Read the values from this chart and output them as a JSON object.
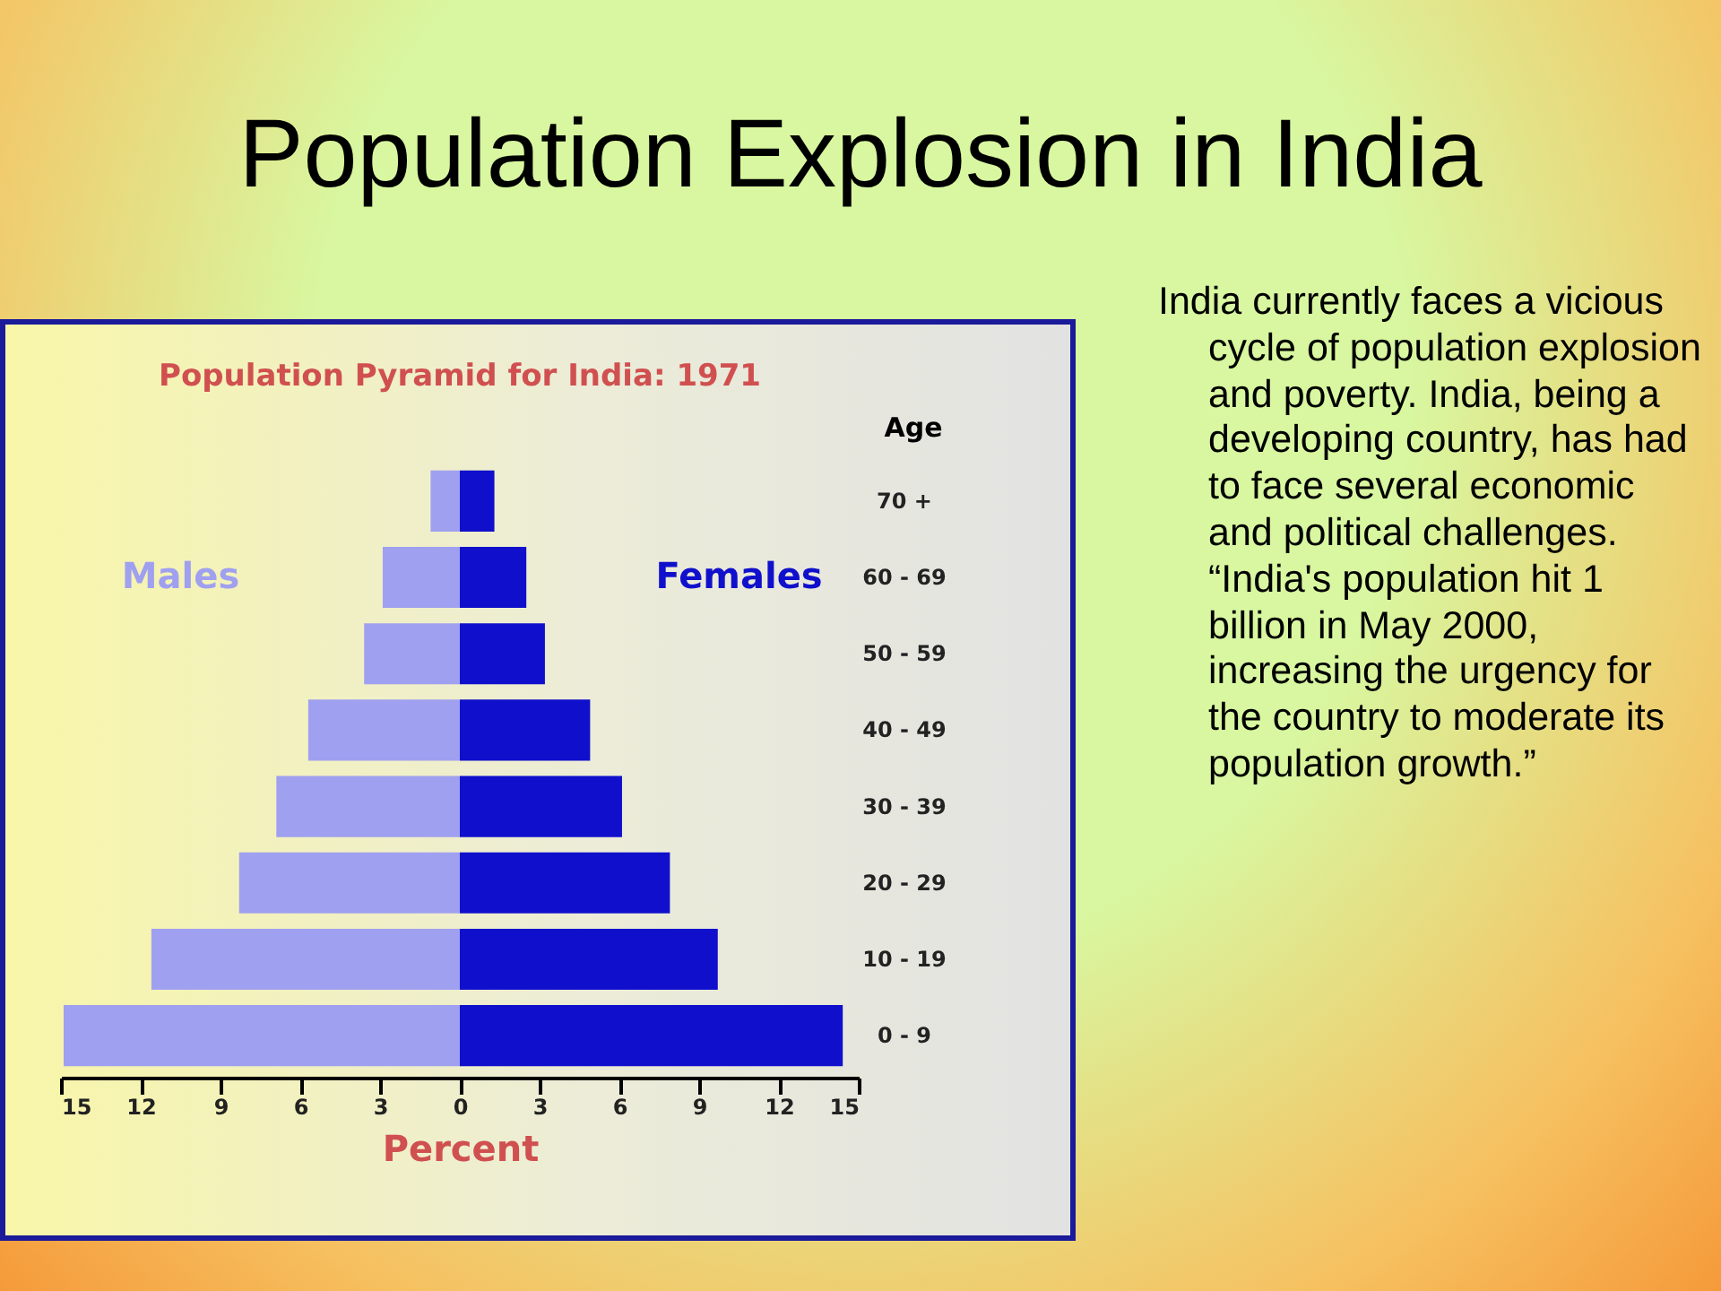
{
  "chart_data": {
    "type": "bar",
    "orientation": "horizontal",
    "stacked": true,
    "title": "Population Explosion in India",
    "subtitle": "Population Pyramid for India: 1971",
    "xlabel": "Percent",
    "ylabel": "Age",
    "categories": [
      "70 +",
      "60 - 69",
      "50 - 59",
      "40 - 49",
      "30 - 39",
      "20 - 29",
      "10 - 19",
      "0 - 9"
    ],
    "series": [
      {
        "name": "Males",
        "color": "#a0a0f0",
        "values": [
          -1.1,
          -2.9,
          -3.6,
          -5.7,
          -6.9,
          -8.3,
          -11.6,
          -14.9
        ]
      },
      {
        "name": "Females",
        "color": "#1010cc",
        "values": [
          1.3,
          2.5,
          3.2,
          4.9,
          6.1,
          7.9,
          9.7,
          14.4
        ]
      }
    ],
    "xlim": [
      -15,
      15
    ],
    "xticks": [
      {
        "value": -15,
        "label": "15"
      },
      {
        "value": -12,
        "label": "12"
      },
      {
        "value": -9,
        "label": "9"
      },
      {
        "value": -6,
        "label": "6"
      },
      {
        "value": -3,
        "label": "3"
      },
      0,
      3,
      6,
      9,
      12,
      15
    ],
    "grid": false,
    "legend": false,
    "annotations": [
      "India currently faces a vicious cycle of population explosion and poverty. India, being a developing country, has had to face several economic and political challenges. “India's population hit 1 billion in May 2000, increasing the urgency for the country to moderate its population growth.”"
    ]
  }
}
